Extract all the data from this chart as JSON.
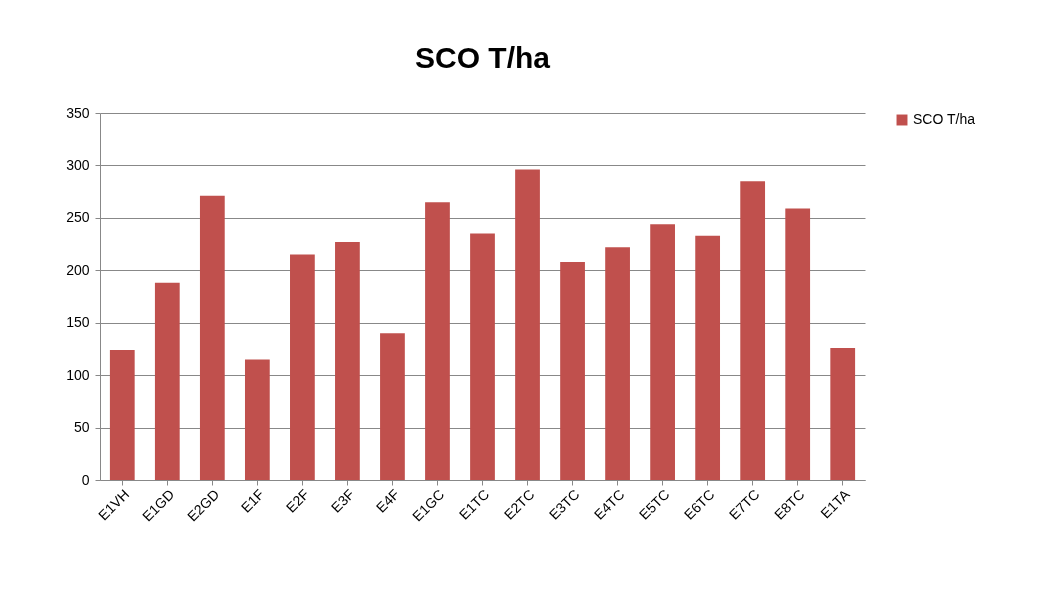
{
  "chart_data": {
    "type": "bar",
    "title": "SCO  T/ha",
    "categories": [
      "E1VH",
      "E1GD",
      "E2GD",
      "E1F",
      "E2F",
      "E3F",
      "E4F",
      "E1GC",
      "E1TC",
      "E2TC",
      "E3TC",
      "E4TC",
      "E5TC",
      "E6TC",
      "E7TC",
      "E8TC",
      "E1TA"
    ],
    "series": [
      {
        "name": "SCO  T/ha",
        "color": "#c0504d",
        "values": [
          124,
          188,
          271,
          115,
          215,
          227,
          140,
          265,
          235,
          296,
          208,
          222,
          244,
          233,
          285,
          259,
          126
        ]
      }
    ],
    "ylim": [
      0,
      350
    ],
    "yticks": [
      0,
      50,
      100,
      150,
      200,
      250,
      300,
      350
    ],
    "grid": "y",
    "legend": "right"
  }
}
